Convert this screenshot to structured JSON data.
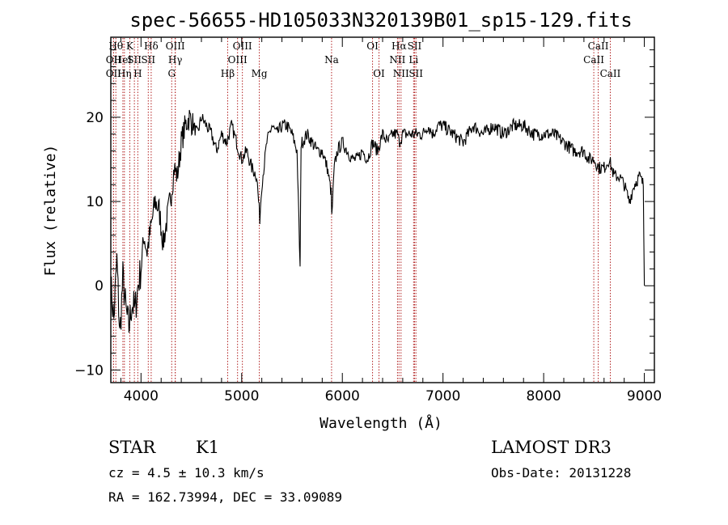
{
  "chart_data": {
    "type": "line",
    "title": "spec-56655-HD105033N320139B01_sp15-129.fits",
    "xlabel": "Wavelength (Å)",
    "ylabel": "Flux (relative)",
    "xlim": [
      3700,
      9100
    ],
    "ylim": [
      -11.5,
      29.5
    ],
    "xticks": [
      4000,
      5000,
      6000,
      7000,
      8000,
      9000
    ],
    "yticks": [
      -10,
      0,
      10,
      20
    ],
    "xtick_labels": [
      "4000",
      "5000",
      "6000",
      "7000",
      "8000",
      "9000"
    ],
    "ytick_labels": [
      "−10",
      "0",
      "10",
      "20"
    ],
    "line_color": "#000000",
    "marker_color": "#b22222",
    "series": [
      {
        "name": "flux",
        "x": [
          3700,
          3730,
          3760,
          3790,
          3820,
          3850,
          3880,
          3910,
          3940,
          3970,
          4000,
          4030,
          4060,
          4100,
          4140,
          4180,
          4220,
          4260,
          4300,
          4330,
          4360,
          4400,
          4440,
          4480,
          4520,
          4560,
          4600,
          4650,
          4700,
          4750,
          4800,
          4850,
          4900,
          4950,
          5000,
          5050,
          5100,
          5150,
          5180,
          5200,
          5250,
          5300,
          5350,
          5400,
          5450,
          5500,
          5550,
          5580,
          5590,
          5600,
          5650,
          5700,
          5750,
          5800,
          5850,
          5890,
          5895,
          5920,
          5950,
          6000,
          6050,
          6100,
          6150,
          6200,
          6250,
          6300,
          6350,
          6400,
          6450,
          6500,
          6550,
          6563,
          6600,
          6650,
          6700,
          6750,
          6800,
          6850,
          6900,
          6950,
          7000,
          7100,
          7200,
          7250,
          7300,
          7400,
          7500,
          7600,
          7700,
          7800,
          7900,
          8000,
          8100,
          8200,
          8300,
          8400,
          8450,
          8500,
          8550,
          8600,
          8650,
          8700,
          8750,
          8800,
          8850,
          8900,
          8950,
          8990,
          9000
        ],
        "values": [
          0,
          -4,
          3,
          -6,
          1,
          -3,
          -5,
          -2,
          -3,
          0,
          2,
          6,
          4,
          7,
          10,
          9,
          5,
          8,
          11,
          14,
          13,
          17,
          19,
          20,
          19,
          18,
          20,
          19,
          18,
          16,
          18,
          17,
          19,
          17,
          15,
          16,
          14,
          13,
          8,
          12,
          17,
          19,
          18,
          19,
          19,
          18,
          16,
          2,
          17,
          17,
          18,
          17,
          16,
          16,
          14,
          11,
          8,
          14,
          16,
          17,
          16,
          15,
          15,
          16,
          15,
          17,
          16,
          18,
          17,
          18,
          18,
          17,
          18,
          18,
          18,
          18,
          18,
          19,
          18,
          19,
          19,
          18,
          17,
          18,
          19,
          18,
          19,
          18,
          19,
          19,
          18,
          18,
          18,
          17,
          16,
          16,
          15,
          15,
          14,
          14,
          15,
          13,
          13,
          12,
          10,
          12,
          13,
          12,
          0
        ]
      }
    ],
    "markers": [
      {
        "wavelength": 3750,
        "label": "Hθ",
        "row": 1
      },
      {
        "wavelength": 3727,
        "label": "OII",
        "row": 2
      },
      {
        "wavelength": 3727,
        "label": "OII",
        "row": 3
      },
      {
        "wavelength": 3820,
        "label": "HeI",
        "row": 2
      },
      {
        "wavelength": 3835,
        "label": "Hη",
        "row": 3
      },
      {
        "wavelength": 3889,
        "label": "K",
        "row": 1
      },
      {
        "wavelength": 3934,
        "label": "SII",
        "row": 2
      },
      {
        "wavelength": 3968,
        "label": "H",
        "row": 3
      },
      {
        "wavelength": 4101,
        "label": "Hδ",
        "row": 1
      },
      {
        "wavelength": 4072,
        "label": "SII",
        "row": 2
      },
      {
        "wavelength": 4340,
        "label": "OIII",
        "row": 1
      },
      {
        "wavelength": 4340,
        "label": "Hγ",
        "row": 2
      },
      {
        "wavelength": 4305,
        "label": "G",
        "row": 3
      },
      {
        "wavelength": 4861,
        "label": "Hβ",
        "row": 3
      },
      {
        "wavelength": 5007,
        "label": "OIII",
        "row": 1
      },
      {
        "wavelength": 4959,
        "label": "OIII",
        "row": 2
      },
      {
        "wavelength": 5175,
        "label": "Mg",
        "row": 3
      },
      {
        "wavelength": 5893,
        "label": "Na",
        "row": 2
      },
      {
        "wavelength": 6300,
        "label": "OI",
        "row": 1
      },
      {
        "wavelength": 6364,
        "label": "OI",
        "row": 3
      },
      {
        "wavelength": 6563,
        "label": "Hα",
        "row": 1
      },
      {
        "wavelength": 6548,
        "label": "NII",
        "row": 2
      },
      {
        "wavelength": 6583,
        "label": "NII",
        "row": 3
      },
      {
        "wavelength": 6717,
        "label": "SII",
        "row": 1
      },
      {
        "wavelength": 6708,
        "label": "Li",
        "row": 2
      },
      {
        "wavelength": 6731,
        "label": "SII",
        "row": 3
      },
      {
        "wavelength": 8542,
        "label": "CaII",
        "row": 1
      },
      {
        "wavelength": 8498,
        "label": "CaII",
        "row": 2
      },
      {
        "wavelength": 8662,
        "label": "CaII",
        "row": 3
      }
    ]
  },
  "info": {
    "class": "STAR",
    "subclass": "K1",
    "survey": "LAMOST DR3",
    "cz": "cz = 4.5 ± 10.3 km/s",
    "obs_date": "Obs-Date: 20131228",
    "coords": "RA = 162.73994, DEC =  33.09089"
  }
}
